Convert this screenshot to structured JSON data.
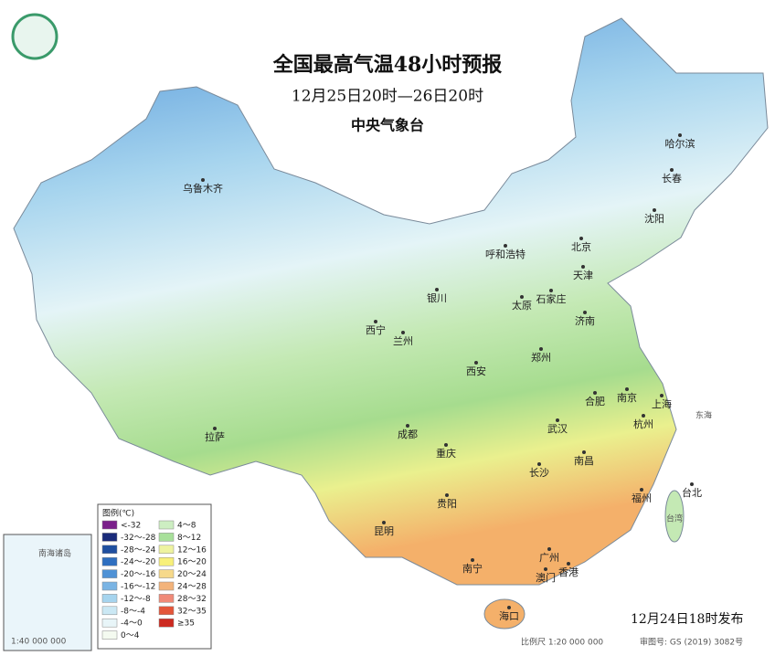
{
  "header": {
    "title": "全国最高气温48小时预报",
    "subtitle": "12月25日20时—26日20时",
    "issuer": "中央气象台"
  },
  "cities": [
    "乌鲁木齐",
    "哈尔滨",
    "长春",
    "沈阳",
    "北京",
    "天津",
    "呼和浩特",
    "石家庄",
    "太原",
    "银川",
    "济南",
    "西宁",
    "兰州",
    "郑州",
    "西安",
    "合肥",
    "南京",
    "上海",
    "杭州",
    "拉萨",
    "成都",
    "武汉",
    "重庆",
    "南昌",
    "长沙",
    "台北",
    "福州",
    "贵阳",
    "昆明",
    "广州",
    "南宁",
    "澳门",
    "香港",
    "海口"
  ],
  "seas": [
    "东海",
    "台湾"
  ],
  "legend": {
    "title": "图例(℃)",
    "items": [
      {
        "label": "<-32",
        "color": "#7a1f8a"
      },
      {
        "label": "-32～-28",
        "color": "#1a2b7a"
      },
      {
        "label": "-28～-24",
        "color": "#1f4fa0"
      },
      {
        "label": "-24～-20",
        "color": "#2f6fc0"
      },
      {
        "label": "-20～-16",
        "color": "#4f92d6"
      },
      {
        "label": "-16～-12",
        "color": "#7ab4e4"
      },
      {
        "label": "-12～-8",
        "color": "#a6d4ee"
      },
      {
        "label": "-8～-4",
        "color": "#cbe8f4"
      },
      {
        "label": "-4～0",
        "color": "#e8f5f8"
      },
      {
        "label": "0～4",
        "color": "#f4faf0"
      },
      {
        "label": "4～8",
        "color": "#cdeec2"
      },
      {
        "label": "8～12",
        "color": "#a8e09a"
      },
      {
        "label": "12～16",
        "color": "#eef3a0"
      },
      {
        "label": "16～20",
        "color": "#f8f07a"
      },
      {
        "label": "20～24",
        "color": "#f6d98a"
      },
      {
        "label": "24～28",
        "color": "#f3b37a"
      },
      {
        "label": "28～32",
        "color": "#f08a78"
      },
      {
        "label": "32～35",
        "color": "#e4563a"
      },
      {
        "label": "≥35",
        "color": "#cc2a20"
      }
    ]
  },
  "inset": {
    "title": "南海诸岛",
    "scale": "1:40 000 000"
  },
  "footer": {
    "published": "12月24日18时发布",
    "scale": "比例尺 1:20 000 000",
    "review": "审图号: GS (2019) 3082号"
  }
}
